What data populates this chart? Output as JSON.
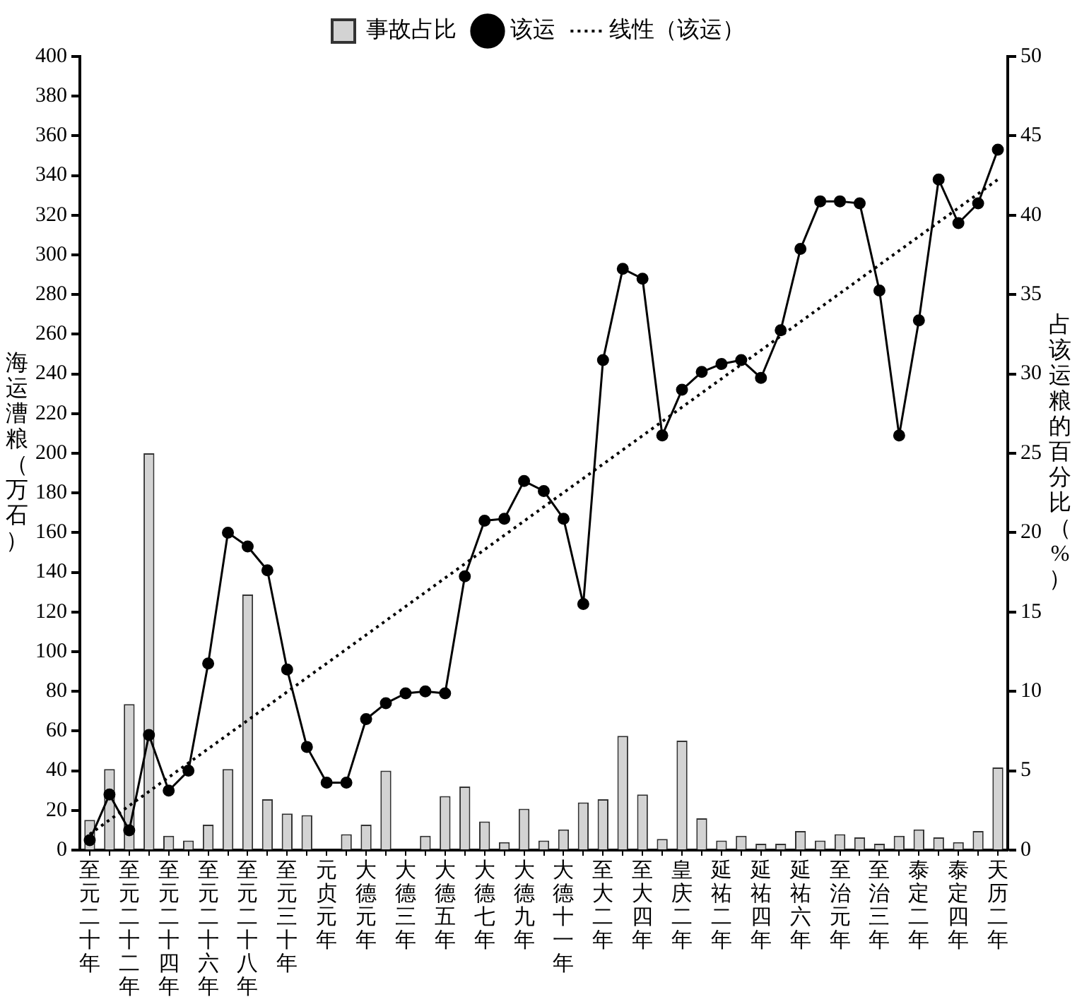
{
  "chart_data": {
    "type": "bar",
    "ylabel": "海运漕粮（万石）",
    "y2label": "占该运粮的百分比（%）",
    "categories": [
      "至元二十年",
      null,
      "至元二十二年",
      null,
      "至元二十四年",
      null,
      "至元二十六年",
      null,
      "至元二十八年",
      null,
      "至元三十年",
      null,
      "元贞元年",
      null,
      "大德元年",
      null,
      "大德三年",
      null,
      "大德五年",
      null,
      "大德七年",
      null,
      "大德九年",
      null,
      "大德十一年",
      null,
      "至大二年",
      null,
      "至大四年",
      null,
      "皇庆二年",
      null,
      "延祐二年",
      null,
      "延祐四年",
      null,
      "延祐六年",
      null,
      "至治元年",
      null,
      "至治三年",
      null,
      "泰定二年",
      null,
      "泰定四年",
      null,
      "天历二年"
    ],
    "series": [
      {
        "name": "事故占比",
        "axis": "y2",
        "color": "#d3d3d3",
        "values": [
          1.9,
          5.1,
          9.2,
          25,
          0.9,
          0.6,
          1.6,
          5.1,
          16.1,
          3.2,
          2.3,
          2.2,
          0,
          1,
          1.6,
          5,
          0,
          0.9,
          3.4,
          4,
          1.8,
          0.5,
          2.6,
          0.6,
          1.3,
          3,
          3.2,
          7.2,
          3.5,
          0.7,
          6.9,
          2,
          0.6,
          0.9,
          0.4,
          0.4,
          1.2,
          0.6,
          1,
          0.8,
          0.4,
          0.9,
          1.3,
          0.8,
          0.5,
          1.2,
          5.2
        ]
      },
      {
        "name": "该运",
        "type": "line",
        "axis": "y",
        "color": "#000000",
        "marker": "circle",
        "line_style": "solid",
        "values": [
          5,
          28,
          10,
          58,
          30,
          40,
          94,
          160,
          153,
          141,
          91,
          52,
          34,
          34,
          66,
          74,
          79,
          80,
          79,
          138,
          166,
          167,
          186,
          181,
          167,
          124,
          247,
          293,
          288,
          209,
          232,
          241,
          245,
          247,
          238,
          262,
          303,
          327,
          327,
          326,
          282,
          209,
          267,
          338,
          316,
          326,
          353
        ]
      },
      {
        "name": "线性（该运）",
        "type": "line",
        "axis": "y",
        "color": "#000000",
        "marker": "none",
        "line_style": "dotted",
        "values": [
          8,
          null,
          null,
          null,
          null,
          null,
          null,
          null,
          null,
          null,
          null,
          null,
          null,
          null,
          null,
          null,
          null,
          null,
          null,
          null,
          null,
          null,
          null,
          null,
          null,
          null,
          null,
          null,
          null,
          null,
          null,
          null,
          null,
          null,
          null,
          null,
          null,
          null,
          null,
          null,
          null,
          null,
          null,
          null,
          null,
          null,
          338
        ]
      }
    ],
    "ylim": [
      0,
      400
    ],
    "yticks": [
      0,
      20,
      40,
      60,
      80,
      100,
      120,
      140,
      160,
      180,
      200,
      220,
      240,
      260,
      280,
      300,
      320,
      340,
      360,
      380,
      400
    ],
    "y2lim": [
      0,
      50
    ],
    "y2ticks": [
      0,
      5,
      10,
      15,
      20,
      25,
      30,
      35,
      40,
      45,
      50
    ],
    "grid": false,
    "legend": "top"
  }
}
